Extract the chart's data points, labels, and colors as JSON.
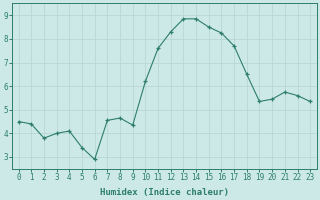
{
  "x": [
    0,
    1,
    2,
    3,
    4,
    5,
    6,
    7,
    8,
    9,
    10,
    11,
    12,
    13,
    14,
    15,
    16,
    17,
    18,
    19,
    20,
    21,
    22,
    23
  ],
  "y": [
    4.5,
    4.4,
    3.8,
    4.0,
    4.1,
    3.4,
    2.9,
    4.55,
    4.65,
    4.35,
    6.2,
    7.6,
    8.3,
    8.85,
    8.85,
    8.5,
    8.25,
    7.7,
    6.5,
    5.35,
    5.45,
    5.75,
    5.6,
    5.35
  ],
  "xlabel": "Humidex (Indice chaleur)",
  "ylim": [
    2.5,
    9.5
  ],
  "xlim": [
    -0.5,
    23.5
  ],
  "yticks": [
    3,
    4,
    5,
    6,
    7,
    8,
    9
  ],
  "xticks": [
    0,
    1,
    2,
    3,
    4,
    5,
    6,
    7,
    8,
    9,
    10,
    11,
    12,
    13,
    14,
    15,
    16,
    17,
    18,
    19,
    20,
    21,
    22,
    23
  ],
  "line_color": "#2e7d6e",
  "marker_color": "#2e7d6e",
  "bg_color": "#cce9e7",
  "grid_color": "#b8d8d5",
  "axes_color": "#2e7d6e",
  "tick_label_color": "#2e7d6e",
  "xlabel_color": "#2e7d6e",
  "xlabel_fontsize": 6.5,
  "tick_fontsize": 5.5
}
